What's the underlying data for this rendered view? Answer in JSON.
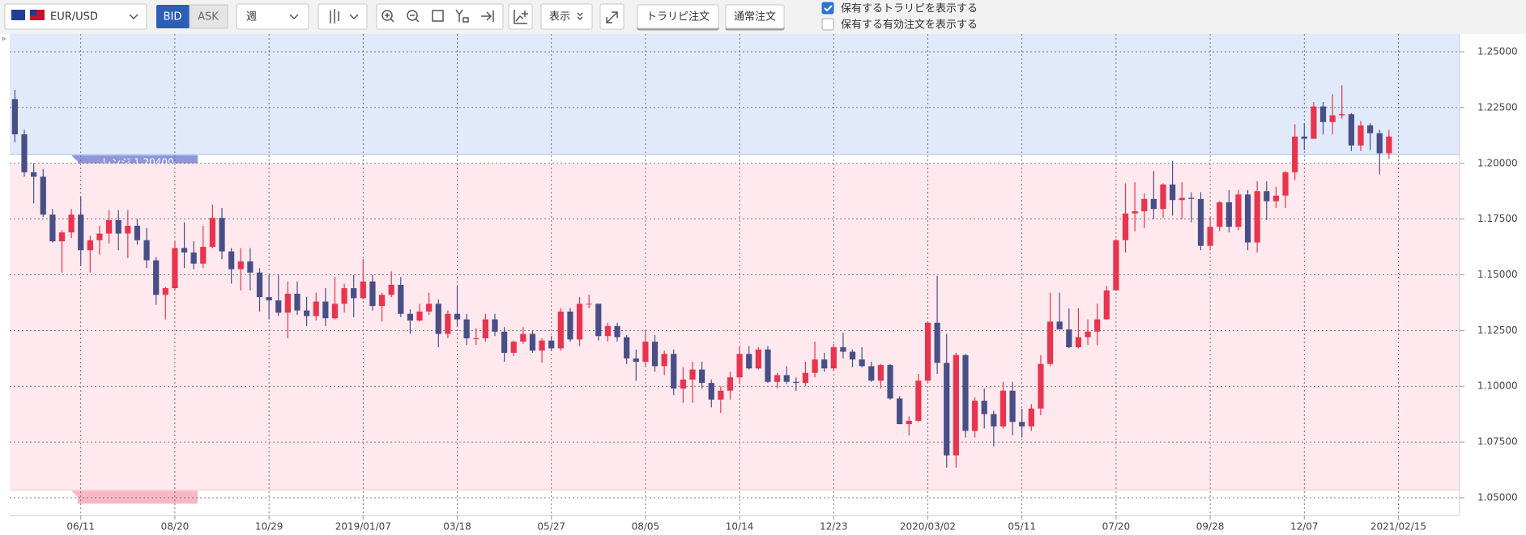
{
  "toolbar": {
    "pair": "EUR/USD",
    "bid": "BID",
    "ask": "ASK",
    "period": "週",
    "display": "表示",
    "buttons": [
      "トラリピ注文",
      "通常注文"
    ],
    "checkboxes": [
      {
        "label": "保有するトラリピを表示する",
        "checked": true
      },
      {
        "label": "保有する有効注文を表示する",
        "checked": false
      }
    ]
  },
  "chart_data": {
    "type": "candlestick",
    "colors": {
      "up": "#e8344e",
      "down": "#484f86"
    },
    "grid": true,
    "xlim": [
      -0.55,
      153.5
    ],
    "xticks": [
      {
        "value": 7,
        "label": "06/11"
      },
      {
        "value": 17,
        "label": "08/20"
      },
      {
        "value": 27,
        "label": "10/29"
      },
      {
        "value": 37,
        "label": "2019/01/07"
      },
      {
        "value": 47,
        "label": "03/18"
      },
      {
        "value": 57,
        "label": "05/27"
      },
      {
        "value": 67,
        "label": "08/05"
      },
      {
        "value": 77,
        "label": "10/14"
      },
      {
        "value": 87,
        "label": "12/23"
      },
      {
        "value": 97,
        "label": "2020/03/02"
      },
      {
        "value": 107,
        "label": "05/11"
      },
      {
        "value": 117,
        "label": "07/20"
      },
      {
        "value": 127,
        "label": "09/28"
      },
      {
        "value": 137,
        "label": "12/07"
      },
      {
        "value": 147,
        "label": "2021/02/15"
      }
    ],
    "ylim": [
      1.042,
      1.258
    ],
    "yticks": [
      {
        "value": 1.05,
        "label": "1.05000"
      },
      {
        "value": 1.075,
        "label": "1.07500"
      },
      {
        "value": 1.1,
        "label": "1.10000"
      },
      {
        "value": 1.125,
        "label": "1.12500"
      },
      {
        "value": 1.15,
        "label": "1.15000"
      },
      {
        "value": 1.175,
        "label": "1.17500"
      },
      {
        "value": 1.2,
        "label": "1.20000"
      },
      {
        "value": 1.225,
        "label": "1.22500"
      },
      {
        "value": 1.25,
        "label": "1.25000"
      }
    ],
    "ranges": [
      {
        "label": "レンジ 1.20400",
        "low": 1.204,
        "high": 1.258,
        "color": "#e1eafb",
        "line": "#a9c0ee",
        "tag": "#8f97d9"
      },
      {
        "low": 1.0535,
        "high": 1.2,
        "color": "#ffe9ee",
        "line": "#f8c3cd",
        "tag": "#f7b8c4"
      }
    ],
    "ohlc": [
      [
        1.2288,
        1.233,
        1.2095,
        1.213
      ],
      [
        1.213,
        1.215,
        1.194,
        1.196
      ],
      [
        1.196,
        1.2,
        1.182,
        1.194
      ],
      [
        1.194,
        1.1975,
        1.176,
        1.177
      ],
      [
        1.177,
        1.1795,
        1.1645,
        1.165
      ],
      [
        1.165,
        1.17,
        1.151,
        1.169
      ],
      [
        1.169,
        1.1795,
        1.1665,
        1.177
      ],
      [
        1.177,
        1.185,
        1.154,
        1.161
      ],
      [
        1.161,
        1.1675,
        1.151,
        1.1655
      ],
      [
        1.1655,
        1.172,
        1.159,
        1.1685
      ],
      [
        1.1685,
        1.179,
        1.164,
        1.1745
      ],
      [
        1.1745,
        1.179,
        1.161,
        1.1685
      ],
      [
        1.1685,
        1.179,
        1.1575,
        1.172
      ],
      [
        1.172,
        1.175,
        1.1635,
        1.1655
      ],
      [
        1.1655,
        1.171,
        1.153,
        1.1565
      ],
      [
        1.1565,
        1.158,
        1.1365,
        1.141
      ],
      [
        1.141,
        1.1445,
        1.13,
        1.144
      ],
      [
        1.144,
        1.165,
        1.143,
        1.162
      ],
      [
        1.162,
        1.1735,
        1.153,
        1.16
      ],
      [
        1.16,
        1.165,
        1.1525,
        1.155
      ],
      [
        1.155,
        1.172,
        1.153,
        1.1625
      ],
      [
        1.1625,
        1.1815,
        1.162,
        1.1755
      ],
      [
        1.1755,
        1.18,
        1.157,
        1.1605
      ],
      [
        1.1605,
        1.162,
        1.146,
        1.1525
      ],
      [
        1.1525,
        1.162,
        1.143,
        1.156
      ],
      [
        1.156,
        1.162,
        1.143,
        1.151
      ],
      [
        1.151,
        1.153,
        1.1335,
        1.14
      ],
      [
        1.14,
        1.15,
        1.13,
        1.1385
      ],
      [
        1.1385,
        1.15,
        1.1315,
        1.133
      ],
      [
        1.133,
        1.147,
        1.1215,
        1.1415
      ],
      [
        1.1415,
        1.147,
        1.132,
        1.134
      ],
      [
        1.134,
        1.14,
        1.127,
        1.1315
      ],
      [
        1.1315,
        1.142,
        1.1295,
        1.138
      ],
      [
        1.138,
        1.144,
        1.127,
        1.1305
      ],
      [
        1.1305,
        1.149,
        1.13,
        1.137
      ],
      [
        1.137,
        1.146,
        1.133,
        1.144
      ],
      [
        1.144,
        1.15,
        1.131,
        1.1395
      ],
      [
        1.1395,
        1.157,
        1.139,
        1.147
      ],
      [
        1.147,
        1.15,
        1.134,
        1.136
      ],
      [
        1.136,
        1.142,
        1.129,
        1.141
      ],
      [
        1.141,
        1.1515,
        1.14,
        1.1455
      ],
      [
        1.1455,
        1.149,
        1.131,
        1.1325
      ],
      [
        1.1325,
        1.1345,
        1.1235,
        1.1295
      ],
      [
        1.1295,
        1.137,
        1.129,
        1.1335
      ],
      [
        1.1335,
        1.142,
        1.132,
        1.137
      ],
      [
        1.137,
        1.139,
        1.1175,
        1.1235
      ],
      [
        1.1235,
        1.134,
        1.1215,
        1.1325
      ],
      [
        1.1325,
        1.145,
        1.127,
        1.13
      ],
      [
        1.13,
        1.1325,
        1.1185,
        1.1215
      ],
      [
        1.1215,
        1.126,
        1.1185,
        1.1215
      ],
      [
        1.1215,
        1.1325,
        1.12,
        1.13
      ],
      [
        1.13,
        1.1325,
        1.1225,
        1.1245
      ],
      [
        1.1245,
        1.1265,
        1.111,
        1.115
      ],
      [
        1.115,
        1.1205,
        1.1135,
        1.12
      ],
      [
        1.12,
        1.1265,
        1.119,
        1.1235
      ],
      [
        1.1235,
        1.125,
        1.115,
        1.116
      ],
      [
        1.116,
        1.1215,
        1.1105,
        1.1205
      ],
      [
        1.1205,
        1.1225,
        1.116,
        1.117
      ],
      [
        1.117,
        1.135,
        1.116,
        1.1335
      ],
      [
        1.1335,
        1.135,
        1.12,
        1.121
      ],
      [
        1.121,
        1.14,
        1.118,
        1.137
      ],
      [
        1.137,
        1.141,
        1.135,
        1.137
      ],
      [
        1.137,
        1.137,
        1.1205,
        1.1225
      ],
      [
        1.1225,
        1.1285,
        1.12,
        1.127
      ],
      [
        1.127,
        1.1285,
        1.12,
        1.122
      ],
      [
        1.122,
        1.123,
        1.11,
        1.1125
      ],
      [
        1.1125,
        1.1165,
        1.1025,
        1.111
      ],
      [
        1.111,
        1.125,
        1.109,
        1.12
      ],
      [
        1.12,
        1.123,
        1.1065,
        1.109
      ],
      [
        1.109,
        1.116,
        1.105,
        1.1145
      ],
      [
        1.1145,
        1.1165,
        1.096,
        1.099
      ],
      [
        1.099,
        1.1085,
        1.0925,
        1.103
      ],
      [
        1.103,
        1.111,
        1.0925,
        1.1075
      ],
      [
        1.1075,
        1.111,
        1.099,
        1.1015
      ],
      [
        1.1015,
        1.103,
        1.0905,
        1.094
      ],
      [
        1.094,
        1.1,
        1.088,
        1.098
      ],
      [
        1.098,
        1.1065,
        1.094,
        1.104
      ],
      [
        1.104,
        1.118,
        1.101,
        1.1145
      ],
      [
        1.1145,
        1.118,
        1.1075,
        1.108
      ],
      [
        1.108,
        1.1175,
        1.1075,
        1.1165
      ],
      [
        1.1165,
        1.118,
        1.1015,
        1.102
      ],
      [
        1.102,
        1.106,
        1.099,
        1.105
      ],
      [
        1.105,
        1.109,
        1.101,
        1.102
      ],
      [
        1.102,
        1.104,
        1.098,
        1.1015
      ],
      [
        1.1015,
        1.111,
        1.1,
        1.106
      ],
      [
        1.106,
        1.12,
        1.104,
        1.112
      ],
      [
        1.112,
        1.115,
        1.1065,
        1.108
      ],
      [
        1.108,
        1.119,
        1.107,
        1.1175
      ],
      [
        1.1175,
        1.124,
        1.1125,
        1.1155
      ],
      [
        1.1155,
        1.1165,
        1.1085,
        1.112
      ],
      [
        1.112,
        1.1175,
        1.1085,
        1.109
      ],
      [
        1.109,
        1.111,
        1.102,
        1.1025
      ],
      [
        1.1025,
        1.11,
        1.099,
        1.1095
      ],
      [
        1.1095,
        1.11,
        1.094,
        1.0945
      ],
      [
        1.0945,
        1.0955,
        1.083,
        1.083
      ],
      [
        1.083,
        1.0865,
        1.078,
        1.0845
      ],
      [
        1.0845,
        1.1055,
        1.084,
        1.1025
      ],
      [
        1.1025,
        1.129,
        1.102,
        1.1285
      ],
      [
        1.1285,
        1.1495,
        1.1055,
        1.1105
      ],
      [
        1.1105,
        1.1235,
        1.0635,
        1.069
      ],
      [
        1.069,
        1.115,
        1.0635,
        1.114
      ],
      [
        1.114,
        1.1145,
        1.077,
        1.08
      ],
      [
        1.08,
        1.095,
        1.077,
        1.0935
      ],
      [
        1.0935,
        1.099,
        1.081,
        1.0875
      ],
      [
        1.0875,
        1.089,
        1.073,
        1.082
      ],
      [
        1.082,
        1.102,
        1.081,
        1.098
      ],
      [
        1.098,
        1.102,
        1.078,
        1.084
      ],
      [
        1.084,
        1.09,
        1.077,
        1.082
      ],
      [
        1.082,
        1.092,
        1.08,
        1.09
      ],
      [
        1.09,
        1.114,
        1.087,
        1.11
      ],
      [
        1.11,
        1.142,
        1.109,
        1.129
      ],
      [
        1.129,
        1.142,
        1.1255,
        1.1255
      ],
      [
        1.1255,
        1.135,
        1.117,
        1.1175
      ],
      [
        1.1175,
        1.135,
        1.117,
        1.122
      ],
      [
        1.122,
        1.13,
        1.1185,
        1.1245
      ],
      [
        1.1245,
        1.137,
        1.1185,
        1.13
      ],
      [
        1.13,
        1.145,
        1.13,
        1.143
      ],
      [
        1.143,
        1.166,
        1.143,
        1.1655
      ],
      [
        1.1655,
        1.191,
        1.16,
        1.1775
      ],
      [
        1.1775,
        1.1915,
        1.1695,
        1.1785
      ],
      [
        1.1785,
        1.1865,
        1.171,
        1.184
      ],
      [
        1.184,
        1.1965,
        1.175,
        1.1795
      ],
      [
        1.1795,
        1.191,
        1.1755,
        1.1905
      ],
      [
        1.1905,
        1.201,
        1.1765,
        1.1835
      ],
      [
        1.1835,
        1.1915,
        1.175,
        1.1845
      ],
      [
        1.1845,
        1.187,
        1.1735,
        1.184
      ],
      [
        1.184,
        1.187,
        1.161,
        1.163
      ],
      [
        1.163,
        1.176,
        1.161,
        1.1715
      ],
      [
        1.1715,
        1.183,
        1.1695,
        1.1825
      ],
      [
        1.1825,
        1.188,
        1.169,
        1.1715
      ],
      [
        1.1715,
        1.188,
        1.17,
        1.186
      ],
      [
        1.186,
        1.188,
        1.161,
        1.1645
      ],
      [
        1.1645,
        1.192,
        1.16,
        1.1875
      ],
      [
        1.1875,
        1.192,
        1.1745,
        1.183
      ],
      [
        1.183,
        1.1895,
        1.18,
        1.1855
      ],
      [
        1.1855,
        1.1965,
        1.18,
        1.196
      ],
      [
        1.196,
        1.2175,
        1.1925,
        1.212
      ],
      [
        1.212,
        1.218,
        1.206,
        1.211
      ],
      [
        1.211,
        1.2275,
        1.211,
        1.2255
      ],
      [
        1.2255,
        1.2275,
        1.213,
        1.2185
      ],
      [
        1.2185,
        1.231,
        1.213,
        1.2215
      ],
      [
        1.2215,
        1.235,
        1.22,
        1.222
      ],
      [
        1.222,
        1.2225,
        1.2055,
        1.208
      ],
      [
        1.208,
        1.219,
        1.2055,
        1.217
      ],
      [
        1.217,
        1.218,
        1.206,
        1.2135
      ],
      [
        1.2135,
        1.215,
        1.195,
        1.2045
      ],
      [
        1.2045,
        1.215,
        1.202,
        1.212
      ]
    ]
  }
}
